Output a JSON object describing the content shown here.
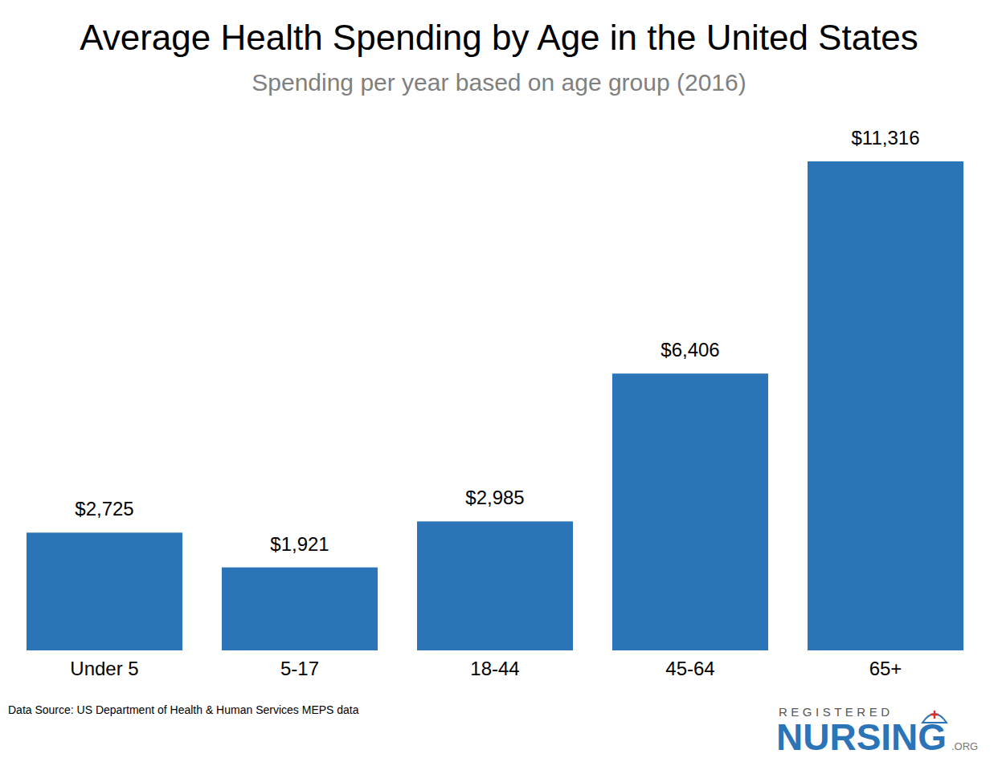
{
  "chart_data": {
    "type": "bar",
    "title": "Average Health Spending by Age in the United States",
    "subtitle": "Spending per year based on age group (2016)",
    "categories": [
      "Under 5",
      "5-17",
      "18-44",
      "45-64",
      "65+"
    ],
    "values": [
      2725,
      1921,
      2985,
      6406,
      11316
    ],
    "value_labels": [
      "$2,725",
      "$1,921",
      "$2,985",
      "$6,406",
      "$11,316"
    ],
    "color": "#2c74b8",
    "ylim": [
      0,
      11316
    ],
    "grid": false,
    "data_labels": true,
    "tick_labels": "x",
    "source": "Data Source: US Department of Health & Human Services MEPS data",
    "logo": {
      "top": "REGISTERED",
      "main": "NURSING",
      "suffix": ".ORG"
    }
  }
}
